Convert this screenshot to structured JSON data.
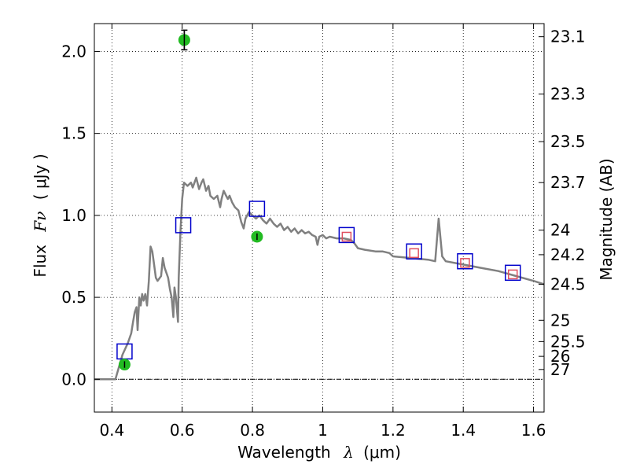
{
  "chart_data": {
    "type": "line",
    "xlabel_prefix": "Wavelength",
    "xlabel_math": "λ",
    "xlabel_unit": "(μm)",
    "ylabel_prefix": "Flux",
    "ylabel_math": "Fν",
    "ylabel_unit": "( μJy )",
    "y2label": "Magnitude (AB)",
    "xlim": [
      0.35,
      1.63
    ],
    "ylim": [
      -0.2,
      2.17
    ],
    "grid": true,
    "x_ticks": [
      {
        "value": 0.4,
        "label": "0.4"
      },
      {
        "value": 0.6,
        "label": "0.6"
      },
      {
        "value": 0.8,
        "label": "0.8"
      },
      {
        "value": 1.0,
        "label": "1"
      },
      {
        "value": 1.2,
        "label": "1.2"
      },
      {
        "value": 1.4,
        "label": "1.4"
      },
      {
        "value": 1.6,
        "label": "1.6"
      }
    ],
    "y_ticks": [
      {
        "value": 0.0,
        "label": "0.0"
      },
      {
        "value": 0.5,
        "label": "0.5"
      },
      {
        "value": 1.0,
        "label": "1.0"
      },
      {
        "value": 1.5,
        "label": "1.5"
      },
      {
        "value": 2.0,
        "label": "2.0"
      }
    ],
    "mag_ticks": [
      {
        "flux": 2.09,
        "label": "23.1"
      },
      {
        "flux": 1.74,
        "label": "23.3"
      },
      {
        "flux": 1.45,
        "label": "23.5"
      },
      {
        "flux": 1.2,
        "label": "23.7"
      },
      {
        "flux": 0.91,
        "label": "24"
      },
      {
        "flux": 0.76,
        "label": "24.2"
      },
      {
        "flux": 0.58,
        "label": "24.5"
      },
      {
        "flux": 0.36,
        "label": "25"
      },
      {
        "flux": 0.23,
        "label": "25.5"
      },
      {
        "flux": 0.14,
        "label": "26"
      },
      {
        "flux": 0.06,
        "label": "27"
      }
    ],
    "series": [
      {
        "type": "line",
        "color": "#808080",
        "points": [
          [
            0.35,
            0.0
          ],
          [
            0.41,
            0.0
          ],
          [
            0.43,
            0.15
          ],
          [
            0.445,
            0.22
          ],
          [
            0.455,
            0.28
          ],
          [
            0.46,
            0.35
          ],
          [
            0.465,
            0.41
          ],
          [
            0.47,
            0.44
          ],
          [
            0.473,
            0.3
          ],
          [
            0.478,
            0.5
          ],
          [
            0.482,
            0.45
          ],
          [
            0.486,
            0.52
          ],
          [
            0.49,
            0.48
          ],
          [
            0.495,
            0.52
          ],
          [
            0.5,
            0.45
          ],
          [
            0.505,
            0.6
          ],
          [
            0.51,
            0.81
          ],
          [
            0.515,
            0.78
          ],
          [
            0.52,
            0.7
          ],
          [
            0.525,
            0.62
          ],
          [
            0.53,
            0.6
          ],
          [
            0.54,
            0.63
          ],
          [
            0.545,
            0.74
          ],
          [
            0.55,
            0.68
          ],
          [
            0.555,
            0.65
          ],
          [
            0.56,
            0.62
          ],
          [
            0.565,
            0.55
          ],
          [
            0.57,
            0.5
          ],
          [
            0.575,
            0.38
          ],
          [
            0.578,
            0.56
          ],
          [
            0.582,
            0.5
          ],
          [
            0.588,
            0.35
          ],
          [
            0.59,
            0.62
          ],
          [
            0.595,
            0.9
          ],
          [
            0.6,
            1.1
          ],
          [
            0.605,
            1.2
          ],
          [
            0.615,
            1.18
          ],
          [
            0.625,
            1.2
          ],
          [
            0.63,
            1.17
          ],
          [
            0.64,
            1.23
          ],
          [
            0.648,
            1.16
          ],
          [
            0.655,
            1.2
          ],
          [
            0.66,
            1.22
          ],
          [
            0.668,
            1.15
          ],
          [
            0.675,
            1.18
          ],
          [
            0.68,
            1.12
          ],
          [
            0.69,
            1.1
          ],
          [
            0.7,
            1.12
          ],
          [
            0.708,
            1.05
          ],
          [
            0.712,
            1.1
          ],
          [
            0.718,
            1.15
          ],
          [
            0.725,
            1.12
          ],
          [
            0.73,
            1.1
          ],
          [
            0.735,
            1.12
          ],
          [
            0.742,
            1.08
          ],
          [
            0.75,
            1.05
          ],
          [
            0.76,
            1.03
          ],
          [
            0.768,
            0.96
          ],
          [
            0.775,
            0.92
          ],
          [
            0.78,
            0.98
          ],
          [
            0.79,
            1.02
          ],
          [
            0.8,
            1.0
          ],
          [
            0.81,
            0.98
          ],
          [
            0.82,
            1.0
          ],
          [
            0.83,
            0.97
          ],
          [
            0.84,
            0.95
          ],
          [
            0.85,
            0.98
          ],
          [
            0.86,
            0.95
          ],
          [
            0.87,
            0.93
          ],
          [
            0.88,
            0.95
          ],
          [
            0.89,
            0.91
          ],
          [
            0.9,
            0.93
          ],
          [
            0.91,
            0.9
          ],
          [
            0.92,
            0.92
          ],
          [
            0.93,
            0.89
          ],
          [
            0.94,
            0.91
          ],
          [
            0.95,
            0.89
          ],
          [
            0.96,
            0.9
          ],
          [
            0.97,
            0.88
          ],
          [
            0.98,
            0.87
          ],
          [
            0.985,
            0.82
          ],
          [
            0.99,
            0.87
          ],
          [
            1.0,
            0.88
          ],
          [
            1.01,
            0.86
          ],
          [
            1.02,
            0.87
          ],
          [
            1.04,
            0.86
          ],
          [
            1.06,
            0.86
          ],
          [
            1.08,
            0.85
          ],
          [
            1.09,
            0.83
          ],
          [
            1.1,
            0.8
          ],
          [
            1.12,
            0.79
          ],
          [
            1.15,
            0.78
          ],
          [
            1.17,
            0.78
          ],
          [
            1.19,
            0.77
          ],
          [
            1.2,
            0.75
          ],
          [
            1.25,
            0.74
          ],
          [
            1.3,
            0.73
          ],
          [
            1.32,
            0.72
          ],
          [
            1.33,
            0.98
          ],
          [
            1.34,
            0.75
          ],
          [
            1.35,
            0.72
          ],
          [
            1.4,
            0.7
          ],
          [
            1.45,
            0.68
          ],
          [
            1.5,
            0.66
          ],
          [
            1.55,
            0.63
          ],
          [
            1.6,
            0.6
          ],
          [
            1.63,
            0.58
          ]
        ]
      },
      {
        "type": "scatter",
        "marker": "open-square",
        "color": "#0000cc",
        "points": [
          [
            0.436,
            0.17
          ],
          [
            0.603,
            0.94
          ],
          [
            0.813,
            1.04
          ],
          [
            1.068,
            0.88
          ],
          [
            1.26,
            0.78
          ],
          [
            1.405,
            0.72
          ],
          [
            1.541,
            0.65
          ]
        ]
      },
      {
        "type": "scatter",
        "marker": "open-square-small",
        "color": "#e05060",
        "points": [
          [
            1.068,
            0.87
          ],
          [
            1.26,
            0.77
          ],
          [
            1.405,
            0.71
          ],
          [
            1.541,
            0.64
          ]
        ]
      },
      {
        "type": "errorbar",
        "marker": "filled-circle",
        "color": "#22bb22",
        "errcolor": "#000000",
        "points": [
          {
            "x": 0.436,
            "y": 0.09,
            "err": 0.02
          },
          {
            "x": 0.606,
            "y": 2.07,
            "err": 0.06
          },
          {
            "x": 0.813,
            "y": 0.87,
            "err": 0.02
          }
        ]
      }
    ]
  }
}
